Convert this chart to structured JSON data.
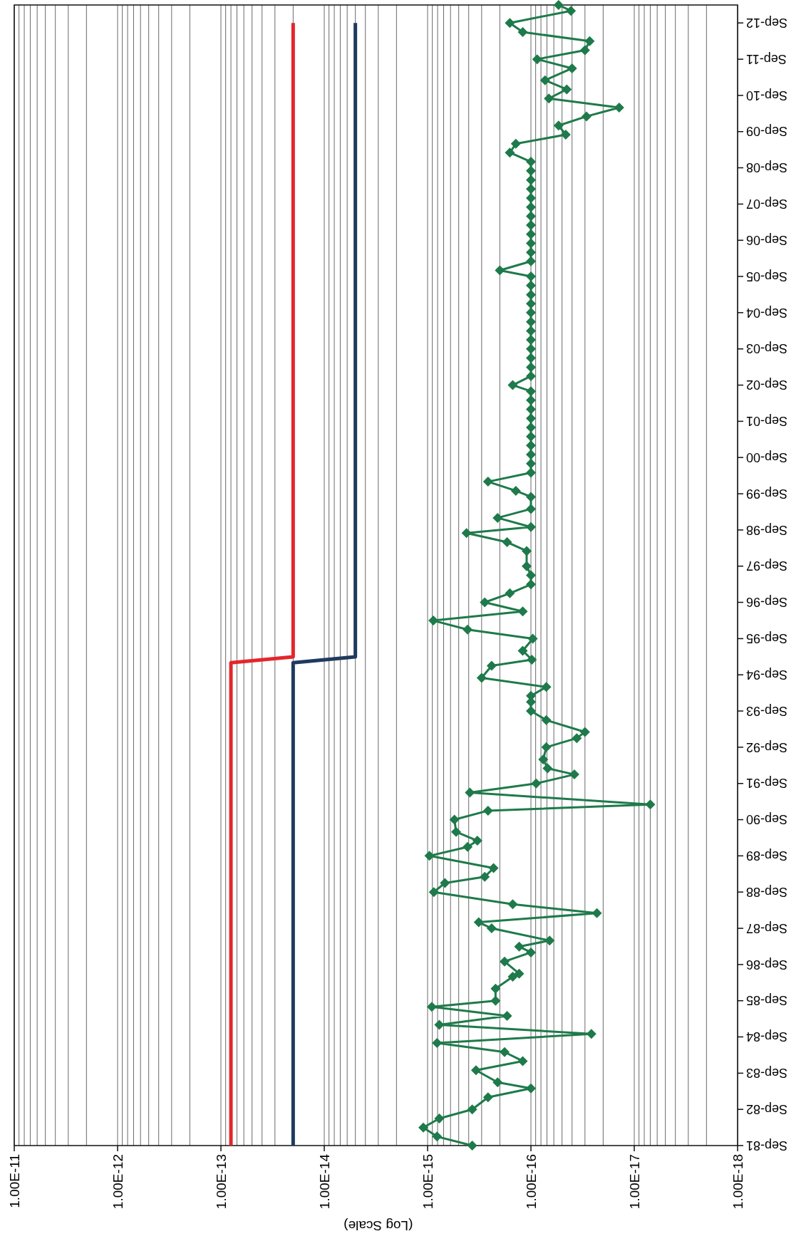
{
  "chart_data": {
    "type": "line",
    "orientation": "horizontal",
    "xlabel": "(Log Scale)",
    "log": "x",
    "grid": "x",
    "ylim": [
      "1981-09",
      "2013-03"
    ],
    "xlim": [
      1e-11,
      1e-18
    ],
    "xticks": [
      {
        "value": 1e-11,
        "label": "1.00E-11"
      },
      {
        "value": 1e-12,
        "label": "1.00E-12"
      },
      {
        "value": 1e-13,
        "label": "1.00E-13"
      },
      {
        "value": 1e-14,
        "label": "1.00E-14"
      },
      {
        "value": 1e-15,
        "label": "1.00E-15"
      },
      {
        "value": 1e-16,
        "label": "1.00E-16"
      },
      {
        "value": 1e-17,
        "label": "1.00E-17"
      },
      {
        "value": 1e-18,
        "label": "1.00E-18"
      }
    ],
    "yticks": [
      {
        "value": "1981-09",
        "label": "Sep-81"
      },
      {
        "value": "1982-09",
        "label": "Sep-82"
      },
      {
        "value": "1983-09",
        "label": "Sep-83"
      },
      {
        "value": "1984-09",
        "label": "Sep-84"
      },
      {
        "value": "1985-09",
        "label": "Sep-85"
      },
      {
        "value": "1986-09",
        "label": "Sep-86"
      },
      {
        "value": "1987-09",
        "label": "Sep-87"
      },
      {
        "value": "1988-09",
        "label": "Sep-88"
      },
      {
        "value": "1989-09",
        "label": "Sep-89"
      },
      {
        "value": "1990-09",
        "label": "Sep-90"
      },
      {
        "value": "1991-09",
        "label": "Sep-91"
      },
      {
        "value": "1992-09",
        "label": "Sep-92"
      },
      {
        "value": "1993-09",
        "label": "Sep-93"
      },
      {
        "value": "1994-09",
        "label": "Sep-94"
      },
      {
        "value": "1995-09",
        "label": "Sep-95"
      },
      {
        "value": "1996-09",
        "label": "Sep-96"
      },
      {
        "value": "1997-09",
        "label": "Sep-97"
      },
      {
        "value": "1998-09",
        "label": "Sep-98"
      },
      {
        "value": "1999-09",
        "label": "Sep-99"
      },
      {
        "value": "2000-09",
        "label": "Sep-00"
      },
      {
        "value": "2001-09",
        "label": "Sep-01"
      },
      {
        "value": "2002-09",
        "label": "Sep-02"
      },
      {
        "value": "2003-09",
        "label": "Sep-03"
      },
      {
        "value": "2004-09",
        "label": "Sep-04"
      },
      {
        "value": "2005-09",
        "label": "Sep-05"
      },
      {
        "value": "2006-09",
        "label": "Sep-06"
      },
      {
        "value": "2007-09",
        "label": "Sep-07"
      },
      {
        "value": "2008-09",
        "label": "Sep-08"
      },
      {
        "value": "2009-09",
        "label": "Sep-09"
      },
      {
        "value": "2010-09",
        "label": "Sep-10"
      },
      {
        "value": "2011-09",
        "label": "Sep-11"
      },
      {
        "value": "2012-09",
        "label": "Sep-12"
      }
    ],
    "series": [
      {
        "color": "#e3262b",
        "marker": "none",
        "x": [
          "1981-09",
          "1995-01",
          "1995-03",
          "2012-09"
        ],
        "values": [
          8e-14,
          8e-14,
          2e-14,
          2e-14
        ]
      },
      {
        "color": "#1f3a5f",
        "marker": "none",
        "x": [
          "1981-09",
          "1995-01",
          "1995-03",
          "2012-09"
        ],
        "values": [
          2e-14,
          2e-14,
          5e-15,
          5e-15
        ]
      },
      {
        "color": "#1e7a4a",
        "marker": "diamond",
        "x": [
          "1981-09",
          "1981-12",
          "1982-03",
          "1982-06",
          "1982-09",
          "1983-01",
          "1983-04",
          "1983-06",
          "1983-10",
          "1984-01",
          "1984-04",
          "1984-07",
          "1984-10",
          "1985-01",
          "1985-04",
          "1985-07",
          "1985-09",
          "1986-01",
          "1986-05",
          "1986-06",
          "1986-10",
          "1987-01",
          "1987-03",
          "1987-05",
          "1987-09",
          "1987-11",
          "1988-02",
          "1988-05",
          "1988-09",
          "1988-12",
          "1989-02",
          "1989-05",
          "1989-09",
          "1989-12",
          "1990-02",
          "1990-05",
          "1990-09",
          "1990-12",
          "1991-02",
          "1991-06",
          "1991-09",
          "1991-12",
          "1992-02",
          "1992-05",
          "1992-09",
          "1992-12",
          "1993-02",
          "1993-06",
          "1993-09",
          "1993-12",
          "1994-02",
          "1994-05",
          "1994-08",
          "1994-12",
          "1995-02",
          "1995-05",
          "1995-09",
          "1995-12",
          "1996-03",
          "1996-06",
          "1996-09",
          "1996-12",
          "1997-03",
          "1997-06",
          "1997-09",
          "1998-02",
          "1998-05",
          "1998-08",
          "1998-10",
          "1999-01",
          "1999-04",
          "1999-08",
          "1999-10",
          "2000-01",
          "2000-04",
          "2000-07",
          "2000-10",
          "2001-01",
          "2001-04",
          "2001-07",
          "2001-10",
          "2002-01",
          "2002-04",
          "2002-07",
          "2002-09",
          "2002-12",
          "2003-03",
          "2003-06",
          "2003-09",
          "2003-12",
          "2004-03",
          "2004-06",
          "2004-09",
          "2004-12",
          "2005-03",
          "2005-06",
          "2005-09",
          "2005-11",
          "2006-02",
          "2006-05",
          "2006-08",
          "2006-11",
          "2007-02",
          "2007-05",
          "2007-08",
          "2007-11",
          "2008-02",
          "2008-05",
          "2008-08",
          "2008-11",
          "2009-02",
          "2009-05",
          "2009-08",
          "2009-11",
          "2010-02",
          "2010-05",
          "2010-08",
          "2010-11",
          "2011-02",
          "2011-06",
          "2011-09",
          "2011-12",
          "2012-03",
          "2012-06",
          "2012-09",
          "2013-01",
          "2013-03"
        ],
        "values": [
          3.7e-16,
          8.1e-16,
          1.1e-15,
          7.7e-16,
          3.7e-16,
          2.6e-16,
          1e-16,
          2.1e-16,
          3.4e-16,
          1.2e-16,
          1.8e-16,
          8.1e-16,
          2.6e-17,
          7.7e-16,
          1.7e-16,
          9.1e-16,
          2.2e-16,
          2.2e-16,
          1.5e-16,
          1.3e-16,
          1.8e-16,
          1e-16,
          1.3e-16,
          6.6e-17,
          2.4e-16,
          3.2e-16,
          2.3e-17,
          1.5e-16,
          8.7e-16,
          6.8e-16,
          2.8e-16,
          2.3e-16,
          9.6e-16,
          4.1e-16,
          3.3e-16,
          5.3e-16,
          5.5e-16,
          2.6e-16,
          7e-18,
          3.9e-16,
          8.9e-17,
          3.8e-17,
          6.9e-17,
          7.6e-17,
          7.1e-17,
          3.6e-17,
          3e-17,
          7.1e-17,
          1e-16,
          1e-16,
          1e-16,
          7.1e-17,
          3e-16,
          2.4e-16,
          9.8e-17,
          1.2e-16,
          9.6e-17,
          4.1e-16,
          8.8e-16,
          1.2e-16,
          2.8e-16,
          1.6e-16,
          1e-16,
          1e-16,
          1.1e-16,
          1.1e-16,
          1.7e-16,
          4.2e-16,
          1e-16,
          2.1e-16,
          1e-16,
          1e-16,
          1.4e-16,
          2.6e-16,
          1e-16,
          1e-16,
          1e-16,
          1e-16,
          1e-16,
          1e-16,
          1e-16,
          1e-16,
          1e-16,
          1e-16,
          1.5e-16,
          1e-16,
          1e-16,
          1e-16,
          1e-16,
          1e-16,
          1e-16,
          1e-16,
          1e-16,
          1e-16,
          1e-16,
          1e-16,
          1e-16,
          2e-16,
          1e-16,
          1e-16,
          1e-16,
          1e-16,
          1e-16,
          1e-16,
          1e-16,
          1e-16,
          1e-16,
          1e-16,
          1e-16,
          1e-16,
          1.6e-16,
          1.4e-16,
          4.6e-17,
          5.4e-17,
          2.9e-17,
          1.4e-17,
          6.7e-17,
          4.5e-17,
          7.3e-17,
          4e-17,
          8.7e-17,
          3e-17,
          2.7e-17,
          1.2e-16,
          1.6e-16,
          4.1e-17,
          5.4e-17
        ]
      }
    ]
  }
}
